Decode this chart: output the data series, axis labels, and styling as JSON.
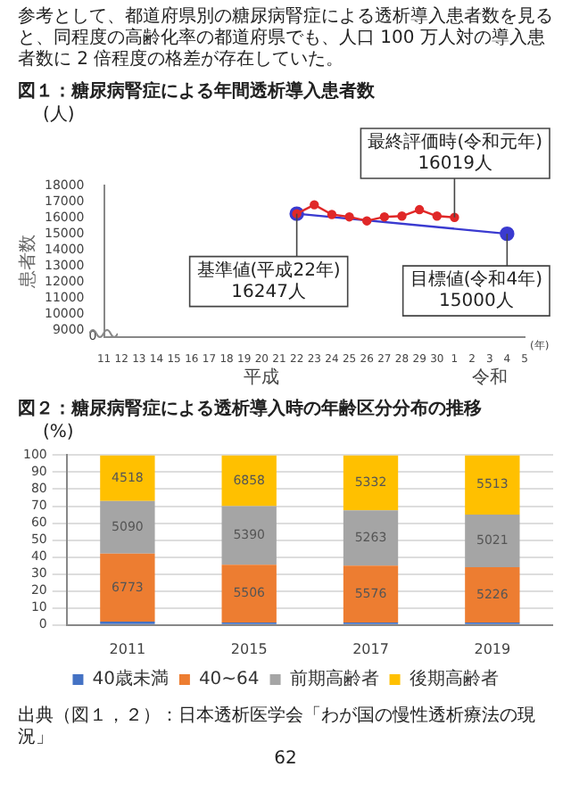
{
  "chart_data": [
    {
      "type": "line",
      "title": "図１：糖尿病腎症による年間透析導入患者数",
      "ylabel": "患者数",
      "xlabel": "(年)",
      "annotations": [
        "参考として、都道府県別の糖尿病腎症による透析導入患者数を見ると、同程度の高齢化率の都道府県でも、人口 100 万人対の導入患者数に 2 倍程度の格差が存在していた。",
        "(人)",
        "0",
        "平成",
        "令和",
        {
          "text": "最終評価時(令和元年)\n16019人",
          "x": "1",
          "y": 16019
        },
        {
          "text": "基準値(平成22年)\n16247人",
          "x": "22",
          "y": 16247
        },
        {
          "text": "目標値(令和4年)\n15000人",
          "x": "4",
          "y": 15000
        }
      ],
      "categories": [
        "11",
        "12",
        "13",
        "14",
        "15",
        "16",
        "17",
        "18",
        "19",
        "20",
        "21",
        "22",
        "23",
        "24",
        "25",
        "26",
        "27",
        "28",
        "29",
        "30",
        "1",
        "2",
        "3",
        "4",
        "5"
      ],
      "series": [
        {
          "color": "#e02828",
          "values": [
            null,
            null,
            null,
            null,
            null,
            null,
            null,
            null,
            null,
            null,
            null,
            16247,
            16800,
            16200,
            16050,
            15800,
            16050,
            16100,
            16500,
            16100,
            16019,
            null,
            null,
            null,
            null
          ]
        },
        {
          "color": "#3a3ad0",
          "values": [
            null,
            null,
            null,
            null,
            null,
            null,
            null,
            null,
            null,
            null,
            null,
            16247,
            null,
            null,
            null,
            null,
            null,
            null,
            null,
            null,
            null,
            null,
            null,
            15000,
            null
          ]
        }
      ],
      "ylim": [
        8600,
        18000
      ],
      "yticks": [
        9000,
        10000,
        11000,
        12000,
        13000,
        14000,
        15000,
        16000,
        17000,
        18000
      ],
      "marker": "circle",
      "line_style": "solid",
      "grid": false
    },
    {
      "type": "bar",
      "stacked": true,
      "title": "図２：糖尿病腎症による透析導入時の年齢区分分布の推移",
      "annotations": [
        "(%)",
        "出典（図１，２）：日本透析医学会「わが国の慢性透析療法の現況」",
        "62",
        "6773",
        "5506",
        "5576",
        "5226",
        "5090",
        "5390",
        "5263",
        "5021",
        "4518",
        "6858",
        "5332",
        "5513"
      ],
      "categories": [
        "2011",
        "2015",
        "2017",
        "2019"
      ],
      "series": [
        {
          "name": "40歳未満",
          "color": "#4472c4",
          "values": [
            2,
            1.5,
            1.5,
            1.5
          ]
        },
        {
          "name": "40~64",
          "color": "#ed7d31",
          "values": [
            40,
            34,
            33.5,
            32.5
          ]
        },
        {
          "name": "前期高齢者",
          "color": "#a5a5a5",
          "values": [
            31,
            34.5,
            32.5,
            31
          ]
        },
        {
          "name": "後期高齢者",
          "color": "#ffc000",
          "values": [
            27,
            30,
            32.5,
            35
          ]
        }
      ],
      "ylim": [
        0,
        100
      ],
      "yticks": [
        0,
        10,
        20,
        30,
        40,
        50,
        60,
        70,
        80,
        90,
        100
      ],
      "grid": "y",
      "legend": "bottom"
    }
  ]
}
